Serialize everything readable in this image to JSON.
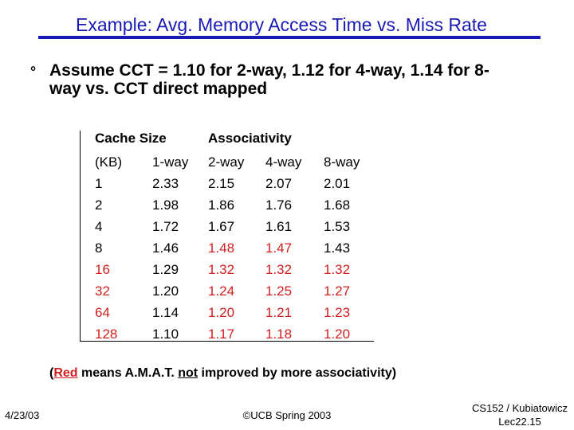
{
  "title": "Example: Avg. Memory Access Time vs. Miss Rate",
  "bullet": {
    "marker": "°",
    "line1": "Assume CCT = 1.10 for 2-way, 1.12 for 4-way, 1.14 for 8-",
    "line2": "way vs. CCT direct mapped"
  },
  "table": {
    "group_headers": [
      "Cache Size",
      "Associativity"
    ],
    "columns": [
      "(KB)",
      "1-way",
      "2-way",
      "4-way",
      "8-way"
    ],
    "rows": [
      [
        "1",
        "2.33",
        "2.15",
        "2.07",
        "2.01"
      ],
      [
        "2",
        "1.98",
        "1.86",
        "1.76",
        "1.68"
      ],
      [
        "4",
        "1.72",
        "1.67",
        "1.61",
        "1.53"
      ],
      [
        "8",
        "1.46",
        "1.48",
        "1.47",
        "1.43"
      ],
      [
        "16",
        "1.29",
        "1.32",
        "1.32",
        "1.32"
      ],
      [
        "32",
        "1.20",
        "1.24",
        "1.25",
        "1.27"
      ],
      [
        "64",
        "1.14",
        "1.20",
        "1.21",
        "1.23"
      ],
      [
        "128",
        "1.10",
        "1.17",
        "1.18",
        "1.20"
      ]
    ],
    "red_cells": [
      [
        3,
        2
      ],
      [
        3,
        3
      ],
      [
        4,
        0
      ],
      [
        4,
        2
      ],
      [
        4,
        3
      ],
      [
        4,
        4
      ],
      [
        5,
        0
      ],
      [
        5,
        2
      ],
      [
        5,
        3
      ],
      [
        5,
        4
      ],
      [
        6,
        0
      ],
      [
        6,
        2
      ],
      [
        6,
        3
      ],
      [
        6,
        4
      ],
      [
        7,
        0
      ],
      [
        7,
        2
      ],
      [
        7,
        3
      ],
      [
        7,
        4
      ]
    ],
    "highlight_color": "#d21e1e"
  },
  "note": {
    "open": "(",
    "red_word": "Red",
    "mid": " means A.M.A.T. ",
    "not_word": "not",
    "rest": " improved by more associativity)"
  },
  "footer": {
    "date": "4/23/03",
    "center": "©UCB Spring 2003",
    "course": "CS152 / Kubiatowicz",
    "lecture": "Lec22.15"
  }
}
